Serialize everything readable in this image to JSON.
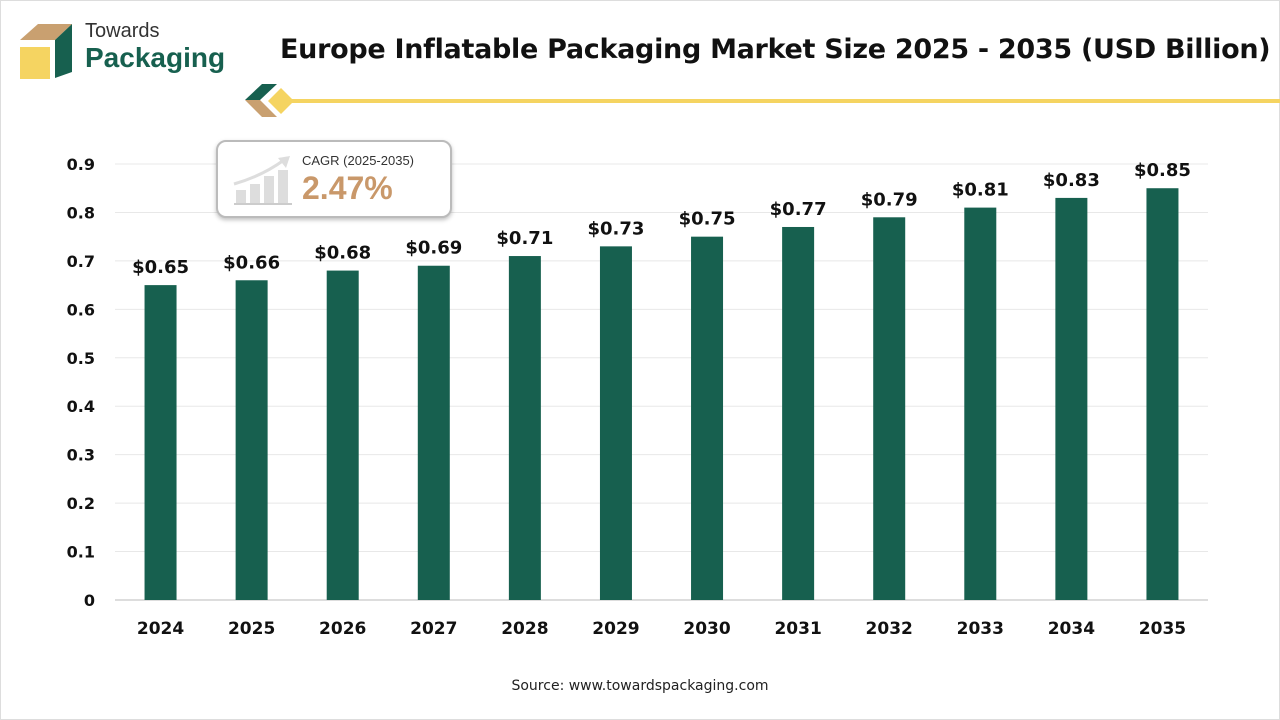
{
  "brand": {
    "line1": "Towards",
    "line2": "Packaging"
  },
  "source": "Source: www.towardspackaging.com",
  "cagr": {
    "label": "CAGR (2025-2035)",
    "value": "2.47%"
  },
  "colors": {
    "bar": "#17604f",
    "accent": "#f5d461",
    "cagr": "#c9986a"
  },
  "chart_data": {
    "type": "bar",
    "title": "Europe Inflatable Packaging Market Size 2025 - 2035 (USD Billion)",
    "categories": [
      "2024",
      "2025",
      "2026",
      "2027",
      "2028",
      "2029",
      "2030",
      "2031",
      "2032",
      "2033",
      "2034",
      "2035"
    ],
    "values": [
      0.65,
      0.66,
      0.68,
      0.69,
      0.71,
      0.73,
      0.75,
      0.77,
      0.79,
      0.81,
      0.83,
      0.85
    ],
    "labels": [
      "$0.65",
      "$0.66",
      "$0.68",
      "$0.69",
      "$0.71",
      "$0.73",
      "$0.75",
      "$0.77",
      "$0.79",
      "$0.81",
      "$0.83",
      "$0.85"
    ],
    "yticks": [
      "0",
      "0.1",
      "0.2",
      "0.3",
      "0.4",
      "0.5",
      "0.6",
      "0.7",
      "0.8",
      "0.9"
    ],
    "ylim": [
      0,
      0.9
    ],
    "grid": true,
    "xlabel": "",
    "ylabel": ""
  }
}
